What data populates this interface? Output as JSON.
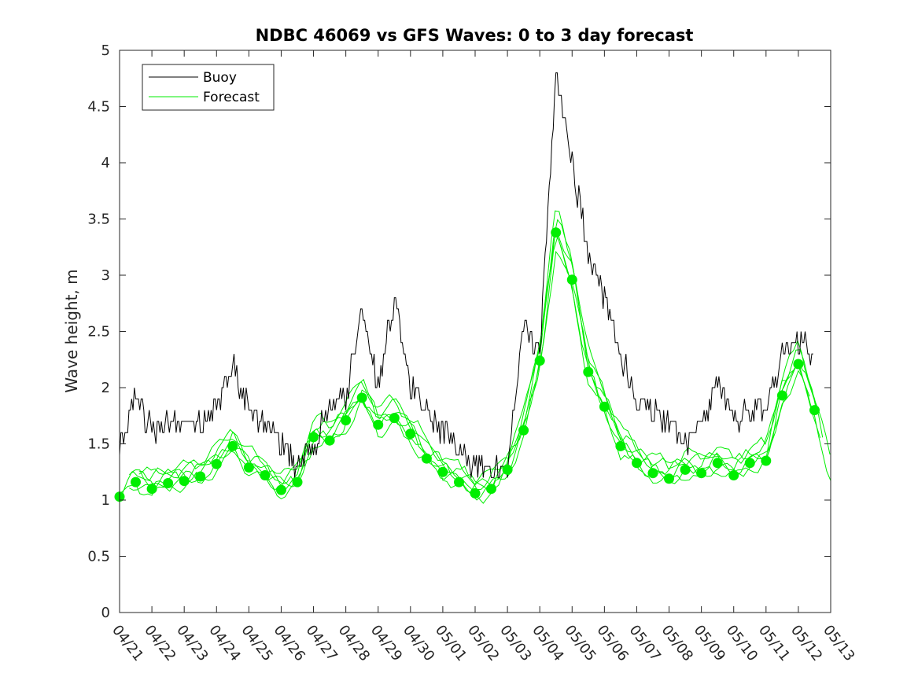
{
  "chart_data": {
    "type": "line",
    "title": "NDBC 46069 vs GFS Waves: 0 to 3 day forecast",
    "xlabel": "",
    "ylabel": "Wave height, m",
    "x_tick_labels": [
      "04/21",
      "04/22",
      "04/23",
      "04/24",
      "04/25",
      "04/26",
      "04/27",
      "04/28",
      "04/29",
      "04/30",
      "05/01",
      "05/02",
      "05/03",
      "05/04",
      "05/05",
      "05/06",
      "05/07",
      "05/08",
      "05/09",
      "05/10",
      "05/11",
      "05/12",
      "05/13"
    ],
    "xlim": [
      "04/21",
      "05/13"
    ],
    "ylim": [
      0,
      5
    ],
    "y_ticks": [
      "0",
      "0.5",
      "1",
      "1.5",
      "2",
      "2.5",
      "3",
      "3.5",
      "4",
      "4.5",
      "5"
    ],
    "grid": false,
    "legend": {
      "position": "top-left",
      "entries": [
        "Buoy",
        "Forecast"
      ]
    },
    "colors": {
      "buoy": "#000000",
      "forecast": "#00ee00"
    },
    "series": [
      {
        "name": "Buoy",
        "x": [
          "04/21",
          "04/21 12h",
          "04/22",
          "04/22 12h",
          "04/23",
          "04/23 12h",
          "04/24",
          "04/24 12h",
          "04/25",
          "04/25 12h",
          "04/26",
          "04/26 12h",
          "04/27",
          "04/27 12h",
          "04/28",
          "04/28 12h",
          "04/29",
          "04/29 12h",
          "04/30",
          "04/30 12h",
          "05/01",
          "05/01 12h",
          "05/02",
          "05/02 12h",
          "05/03",
          "05/03 12h",
          "05/04",
          "05/04 12h",
          "05/05",
          "05/05 12h",
          "05/06",
          "05/06 12h",
          "05/07",
          "05/07 12h",
          "05/08",
          "05/08 12h",
          "05/09",
          "05/09 12h",
          "05/10",
          "05/10 12h",
          "05/11",
          "05/11 12h",
          "05/12",
          "05/12 12h"
        ],
        "y": [
          1.5,
          1.9,
          1.6,
          1.7,
          1.65,
          1.7,
          1.8,
          2.2,
          1.8,
          1.7,
          1.5,
          1.3,
          1.5,
          1.8,
          1.9,
          2.7,
          2.0,
          2.8,
          2.0,
          1.8,
          1.6,
          1.5,
          1.3,
          1.25,
          1.3,
          2.6,
          2.3,
          4.8,
          4.0,
          3.2,
          2.8,
          2.3,
          1.9,
          1.8,
          1.7,
          1.5,
          1.7,
          2.0,
          1.7,
          1.8,
          1.8,
          2.3,
          2.4,
          2.3
        ]
      },
      {
        "name": "Forecast",
        "x": [
          "04/21",
          "04/21 12h",
          "04/22",
          "04/22 12h",
          "04/23",
          "04/23 12h",
          "04/24",
          "04/24 12h",
          "04/25",
          "04/25 12h",
          "04/26",
          "04/26 12h",
          "04/27",
          "04/27 12h",
          "04/28",
          "04/28 12h",
          "04/29",
          "04/29 12h",
          "04/30",
          "04/30 12h",
          "05/01",
          "05/01 12h",
          "05/02",
          "05/02 12h",
          "05/03",
          "05/03 12h",
          "05/04",
          "05/04 12h",
          "05/05",
          "05/05 12h",
          "05/06",
          "05/06 12h",
          "05/07",
          "05/07 12h",
          "05/08",
          "05/08 12h",
          "05/09",
          "05/09 12h",
          "05/10",
          "05/10 12h",
          "05/11",
          "05/11 12h",
          "05/12",
          "05/12 12h"
        ],
        "y": [
          1.03,
          1.16,
          1.1,
          1.15,
          1.17,
          1.21,
          1.32,
          1.48,
          1.29,
          1.22,
          1.09,
          1.16,
          1.56,
          1.53,
          1.71,
          1.91,
          1.67,
          1.73,
          1.59,
          1.37,
          1.25,
          1.16,
          1.06,
          1.1,
          1.27,
          1.62,
          2.24,
          3.38,
          2.96,
          2.14,
          1.83,
          1.48,
          1.33,
          1.24,
          1.19,
          1.27,
          1.24,
          1.33,
          1.22,
          1.33,
          1.35,
          1.93,
          2.21,
          1.8
        ]
      }
    ]
  }
}
